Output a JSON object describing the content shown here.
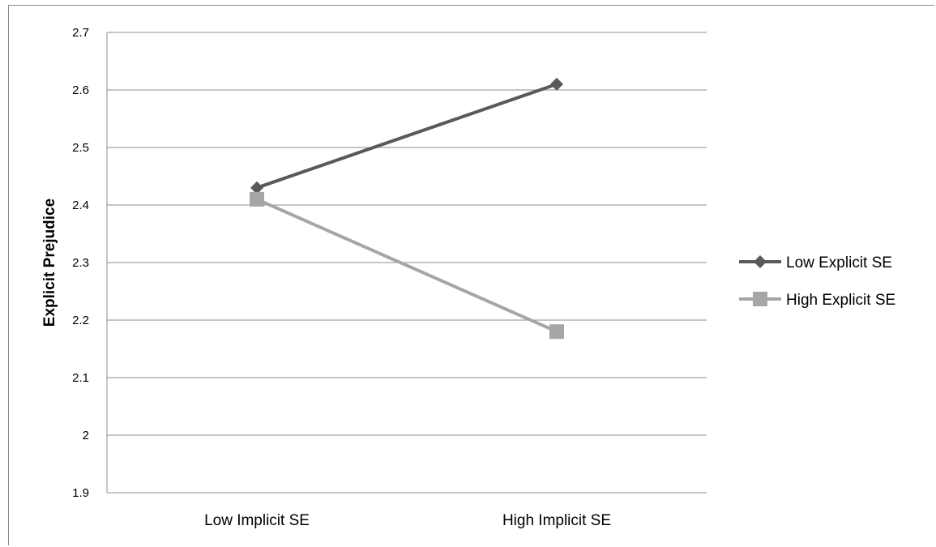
{
  "chart_data": {
    "type": "line",
    "title": "",
    "xlabel": "",
    "ylabel": "Explicit Prejudice",
    "categories": [
      "Low Implicit SE",
      "High Implicit SE"
    ],
    "ylim": [
      1.9,
      2.7
    ],
    "yticks": [
      1.9,
      2,
      2.1,
      2.2,
      2.3,
      2.4,
      2.5,
      2.6,
      2.7
    ],
    "grid": true,
    "legend_position": "right",
    "series": [
      {
        "name": "Low Explicit SE",
        "values": [
          2.43,
          2.61
        ],
        "color": "#595959",
        "marker": "diamond"
      },
      {
        "name": "High Explicit SE",
        "values": [
          2.41,
          2.18
        ],
        "color": "#a6a6a6",
        "marker": "square"
      }
    ]
  }
}
